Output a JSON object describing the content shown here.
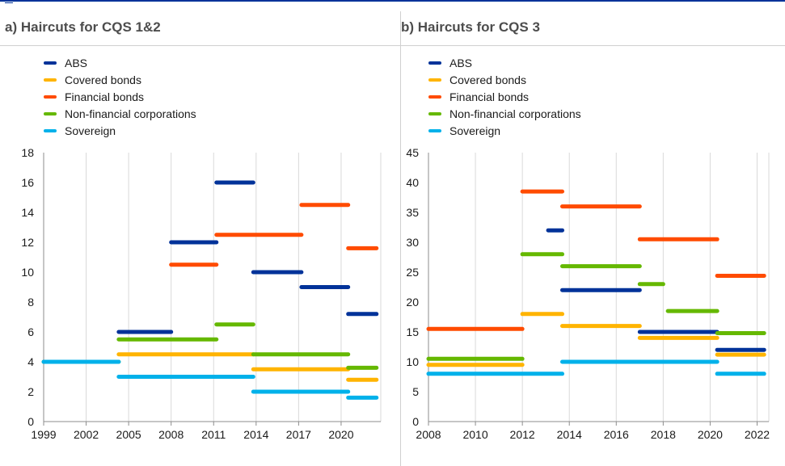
{
  "chart_data": [
    {
      "type": "line",
      "title": "a) Haircuts for CQS 1&2",
      "xlim": [
        1999,
        2022.8
      ],
      "ylim": [
        0,
        18
      ],
      "x_ticks": [
        1999,
        2002,
        2005,
        2008,
        2011,
        2014,
        2017,
        2020
      ],
      "x_tick_labels": [
        "1999",
        "2002",
        "2005",
        "2008",
        "2011",
        "2014",
        "2017",
        "2020"
      ],
      "y_ticks": [
        0,
        2,
        4,
        6,
        8,
        10,
        12,
        14,
        16,
        18
      ],
      "y_tick_labels": [
        "0",
        "2",
        "4",
        "6",
        "8",
        "10",
        "12",
        "14",
        "16",
        "18"
      ],
      "grid": "vertical",
      "legend_position": "top-left",
      "series": [
        {
          "name": "ABS",
          "color": "#003299",
          "segments": [
            [
              2004.3,
              2008.0,
              6.0
            ],
            [
              2008.0,
              2011.2,
              12.0
            ],
            [
              2011.2,
              2013.8,
              16.0
            ],
            [
              2013.8,
              2017.2,
              10.0
            ],
            [
              2017.2,
              2020.5,
              9.0
            ],
            [
              2020.5,
              2022.5,
              7.2
            ]
          ]
        },
        {
          "name": "Covered bonds",
          "color": "#ffb400",
          "segments": [
            [
              2004.3,
              2013.8,
              4.5
            ],
            [
              2013.8,
              2020.5,
              3.5
            ],
            [
              2020.5,
              2022.5,
              2.8
            ]
          ]
        },
        {
          "name": "Financial bonds",
          "color": "#ff4b00",
          "segments": [
            [
              2008.0,
              2011.2,
              10.5
            ],
            [
              2011.2,
              2017.2,
              12.5
            ],
            [
              2017.2,
              2020.5,
              14.5
            ],
            [
              2020.5,
              2022.5,
              11.6
            ]
          ]
        },
        {
          "name": "Non-financial corporations",
          "color": "#65b800",
          "segments": [
            [
              1999.0,
              2004.3,
              4.0
            ],
            [
              2004.3,
              2011.2,
              5.5
            ],
            [
              2011.2,
              2013.8,
              6.5
            ],
            [
              2013.8,
              2020.5,
              4.5
            ],
            [
              2020.5,
              2022.5,
              3.6
            ]
          ]
        },
        {
          "name": "Sovereign",
          "color": "#00b1ea",
          "segments": [
            [
              1999.0,
              2004.3,
              4.0
            ],
            [
              2004.3,
              2013.8,
              3.0
            ],
            [
              2013.8,
              2020.5,
              2.0
            ],
            [
              2020.5,
              2022.5,
              1.6
            ]
          ]
        }
      ]
    },
    {
      "type": "line",
      "title": "b) Haircuts for CQS 3",
      "xlim": [
        2008,
        2022.5
      ],
      "ylim": [
        0,
        45
      ],
      "x_ticks": [
        2008,
        2010,
        2012,
        2014,
        2016,
        2018,
        2020,
        2022
      ],
      "x_tick_labels": [
        "2008",
        "2010",
        "2012",
        "2014",
        "2016",
        "2018",
        "2020",
        "2022"
      ],
      "y_ticks": [
        0,
        5,
        10,
        15,
        20,
        25,
        30,
        35,
        40,
        45
      ],
      "y_tick_labels": [
        "0",
        "5",
        "10",
        "15",
        "20",
        "25",
        "30",
        "35",
        "40",
        "45"
      ],
      "grid": "vertical",
      "legend_position": "top-left",
      "series": [
        {
          "name": "ABS",
          "color": "#003299",
          "segments": [
            [
              2013.1,
              2013.7,
              32.0
            ],
            [
              2013.7,
              2017.0,
              22.0
            ],
            [
              2017.0,
              2020.3,
              15.0
            ],
            [
              2020.3,
              2022.3,
              12.0
            ]
          ]
        },
        {
          "name": "Covered bonds",
          "color": "#ffb400",
          "segments": [
            [
              2008.0,
              2012.0,
              9.5
            ],
            [
              2012.0,
              2013.7,
              18.0
            ],
            [
              2013.7,
              2017.0,
              16.0
            ],
            [
              2017.0,
              2020.3,
              14.0
            ],
            [
              2020.3,
              2022.3,
              11.2
            ]
          ]
        },
        {
          "name": "Financial bonds",
          "color": "#ff4b00",
          "segments": [
            [
              2008.0,
              2012.0,
              15.5
            ],
            [
              2012.0,
              2013.7,
              38.5
            ],
            [
              2013.7,
              2017.0,
              36.0
            ],
            [
              2017.0,
              2020.3,
              30.5
            ],
            [
              2020.3,
              2022.3,
              24.4
            ]
          ]
        },
        {
          "name": "Non-financial corporations",
          "color": "#65b800",
          "segments": [
            [
              2008.0,
              2012.0,
              10.5
            ],
            [
              2012.0,
              2013.7,
              28.0
            ],
            [
              2013.7,
              2017.0,
              26.0
            ],
            [
              2017.0,
              2018.0,
              23.0
            ],
            [
              2018.2,
              2020.3,
              18.5
            ],
            [
              2020.3,
              2022.3,
              14.8
            ]
          ]
        },
        {
          "name": "Sovereign",
          "color": "#00b1ea",
          "segments": [
            [
              2008.0,
              2013.7,
              8.0
            ],
            [
              2013.7,
              2020.3,
              10.0
            ],
            [
              2020.3,
              2022.3,
              8.0
            ]
          ]
        }
      ]
    }
  ]
}
